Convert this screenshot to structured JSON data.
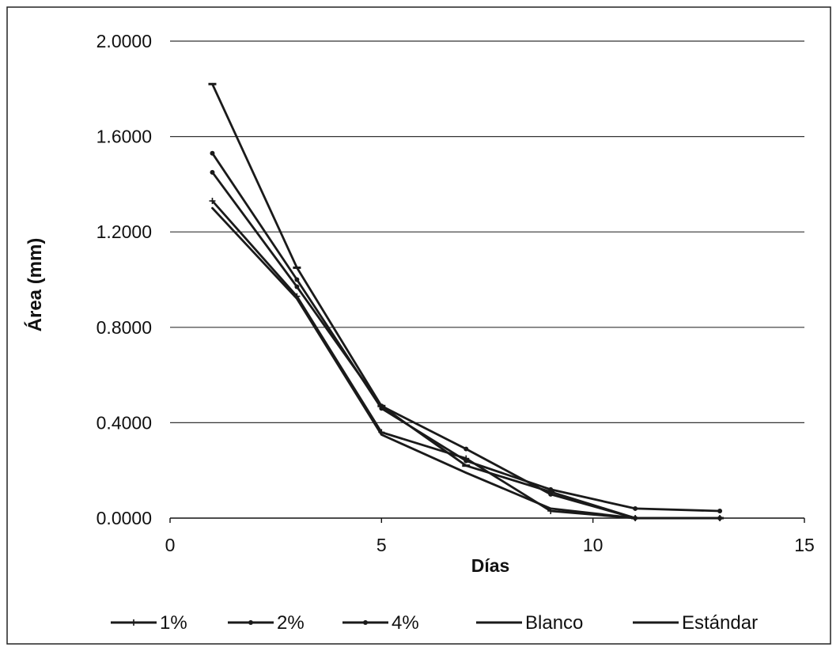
{
  "chart_data": {
    "type": "line",
    "title": "",
    "xlabel": "Días",
    "ylabel": "Área (mm)",
    "xlim": [
      0,
      15
    ],
    "ylim": [
      0,
      2
    ],
    "xticks": [
      0,
      5,
      10,
      15
    ],
    "xtick_labels": [
      "0",
      "5",
      "10",
      "15"
    ],
    "yticks": [
      0,
      0.4,
      0.8,
      1.2,
      1.6,
      2.0
    ],
    "ytick_labels": [
      "0.0000",
      "0.4000",
      "0.8000",
      "1.2000",
      "1.6000",
      "2.0000"
    ],
    "grid": "horizontal",
    "legend_position": "bottom",
    "line_color": "#1a1a1a",
    "series": [
      {
        "name": "1%",
        "marker": "plus",
        "x": [
          1,
          3,
          5,
          7,
          9,
          11,
          13
        ],
        "y": [
          1.33,
          0.93,
          0.36,
          0.25,
          0.03,
          0.0,
          0.0
        ]
      },
      {
        "name": "2%",
        "marker": "dot",
        "x": [
          1,
          3,
          5,
          7,
          9,
          11,
          13
        ],
        "y": [
          1.53,
          1.0,
          0.46,
          0.24,
          0.12,
          0.04,
          0.03
        ]
      },
      {
        "name": "4%",
        "marker": "dot",
        "x": [
          1,
          3,
          5,
          7,
          9,
          11,
          13
        ],
        "y": [
          1.45,
          0.97,
          0.47,
          0.29,
          0.1,
          0.0,
          0.0
        ]
      },
      {
        "name": "Blanco",
        "marker": "none",
        "x": [
          1,
          3,
          5,
          7,
          9,
          11,
          13
        ],
        "y": [
          1.3,
          0.92,
          0.35,
          0.19,
          0.04,
          0.0,
          0.0
        ]
      },
      {
        "name": "Estándar",
        "marker": "dash",
        "x": [
          1,
          3,
          5,
          7,
          9,
          11,
          13
        ],
        "y": [
          1.82,
          1.05,
          0.47,
          0.22,
          0.11,
          0.0,
          0.0
        ]
      }
    ]
  }
}
